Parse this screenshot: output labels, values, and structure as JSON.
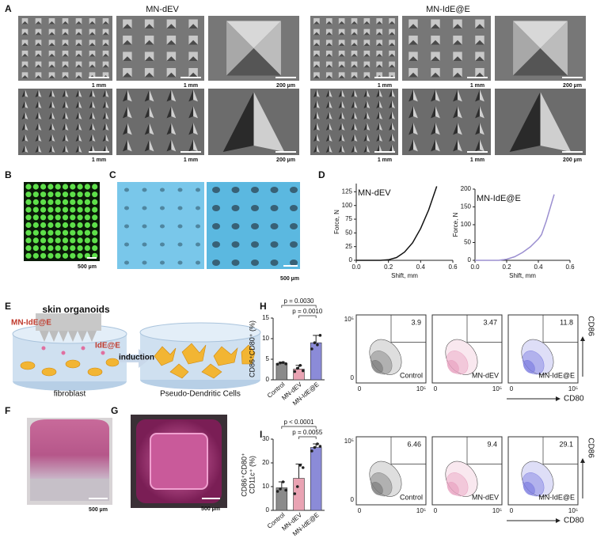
{
  "panel_labels": {
    "a": "A",
    "b": "B",
    "c": "C",
    "d": "D",
    "e": "E",
    "f": "F",
    "g": "G",
    "h": "H",
    "i": "I"
  },
  "panel_a": {
    "titles": [
      "MN-dEV",
      "MN-IdE@E"
    ],
    "scale_bars": [
      "1 mm",
      "1 mm",
      "200 µm"
    ]
  },
  "panel_b": {
    "scale_bar": "500 µm"
  },
  "panel_c": {
    "scale_bar": "500 µm"
  },
  "panel_e": {
    "title": "skin organoids",
    "labels": [
      "MN-IdE@E",
      "IdE@E",
      "induction",
      "fibroblast",
      "Pseudo-Dendritic Cells"
    ]
  },
  "panel_f": {
    "scale_bar": "500 µm"
  },
  "panel_g": {
    "scale_bar": "500 µm"
  },
  "flow_h": {
    "percentages": [
      3.9,
      3.47,
      11.8
    ],
    "x_label": "CD80",
    "y_label": "CD86",
    "ticks": [
      0,
      {
        "value": 100000,
        "label": "10⁵"
      }
    ]
  },
  "flow_i": {
    "percentages": [
      6.46,
      9.4,
      29.1
    ],
    "x_label": "CD80",
    "y_label": "CD86",
    "ticks": [
      0,
      {
        "value": 100000,
        "label": "10⁵"
      }
    ]
  },
  "chart_data": [
    {
      "type": "line",
      "title": "MN-dEV",
      "x_label": "Shift, mm",
      "y_label": "Force, N",
      "color": "#111111",
      "x": [
        0,
        0.15,
        0.2,
        0.25,
        0.3,
        0.35,
        0.4,
        0.45,
        0.5
      ],
      "values": [
        0,
        0,
        1,
        5,
        15,
        32,
        58,
        92,
        135
      ],
      "xlim": [
        0,
        0.6
      ],
      "xticks": [
        {
          "value": 0,
          "label": "0.0"
        },
        0.2,
        0.4,
        0.6
      ],
      "ylim": [
        0,
        140
      ],
      "yticks": [
        0,
        25,
        50,
        75,
        100,
        125
      ]
    },
    {
      "type": "line",
      "title": "MN-IdE@E",
      "x_label": "Shift, mm",
      "y_label": "Force, N",
      "color": "#9b8fd0",
      "x": [
        0,
        0.15,
        0.2,
        0.25,
        0.3,
        0.35,
        0.4,
        0.42,
        0.45,
        0.5
      ],
      "values": [
        0,
        0,
        3,
        10,
        22,
        38,
        60,
        72,
        110,
        185
      ],
      "xlim": [
        0,
        0.6
      ],
      "xticks": [
        {
          "value": 0,
          "label": "0.0"
        },
        0.2,
        0.4,
        0.6
      ],
      "ylim": [
        0,
        200
      ],
      "yticks": [
        0,
        50,
        100,
        150,
        200
      ]
    },
    {
      "type": "bar",
      "y_label": [
        "CD86⁺CD80⁺ (%)"
      ],
      "categories": [
        "Control",
        "MN-dEV",
        "MN-IdE@E"
      ],
      "values": [
        4,
        2.6,
        9
      ],
      "errors": [
        0.3,
        0.9,
        1.8
      ],
      "colors": [
        "#8a8a8a",
        "#e9a3b3",
        "#8b8bd8"
      ],
      "points": [
        [
          3.8,
          4.1,
          4.2,
          3.9
        ],
        [
          2,
          2.8,
          3.5,
          2.2
        ],
        [
          7.5,
          9,
          8.5,
          10.8
        ]
      ],
      "annotations": [
        "p = 0.0030",
        "p = 0.0010"
      ],
      "ylim": [
        0,
        15
      ],
      "yticks": [
        0,
        5,
        10,
        15
      ]
    },
    {
      "type": "bar",
      "y_label": [
        "CD86⁺CD80⁺",
        "CD11c⁺ (%)"
      ],
      "categories": [
        "Control",
        "MN-dEV",
        "MN-IdE@E"
      ],
      "values": [
        9.5,
        13.5,
        26.5
      ],
      "errors": [
        2.5,
        6,
        1.5
      ],
      "colors": [
        "#8a8a8a",
        "#e9a3b3",
        "#8b8bd8"
      ],
      "points": [
        [
          8,
          9,
          12,
          8.5
        ],
        [
          7,
          10,
          19,
          18
        ],
        [
          25,
          26.5,
          28,
          27
        ]
      ],
      "annotations": [
        "p < 0.0001",
        "p = 0.0055"
      ],
      "ylim": [
        0,
        30
      ],
      "yticks": [
        0,
        10,
        20,
        30
      ]
    }
  ]
}
